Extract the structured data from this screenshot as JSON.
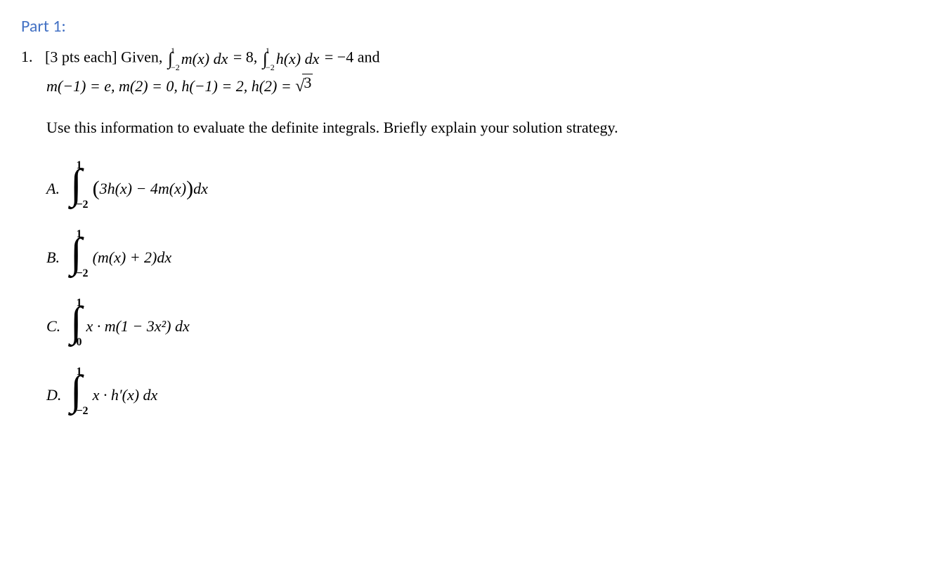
{
  "part": {
    "title": "Part 1:",
    "title_color": "#4472c4"
  },
  "question": {
    "number": "1.",
    "points": "[3 pts each]",
    "given_word": "Given,",
    "integral_m": {
      "lower": "−2",
      "upper": "1",
      "func": "m(x)",
      "dx": "dx",
      "equals": "= 8,"
    },
    "integral_h": {
      "lower": "−2",
      "upper": "1",
      "func": "h(x)",
      "dx": "dx",
      "equals": "= −4"
    },
    "and_word": "and",
    "values_line": "m(−1) = e, m(2) = 0, h(−1) = 2, h(2) = ",
    "sqrt3": "3",
    "instruction": "Use this information to evaluate the definite integrals. Briefly explain your solution strategy."
  },
  "items": {
    "A": {
      "letter": "A.",
      "upper": "1",
      "lower": "−2",
      "body_open": "(",
      "body_mid": "3h(x) − 4m(x)",
      "body_close": ")",
      "dx": " dx"
    },
    "B": {
      "letter": "B.",
      "upper": "1",
      "lower": "−2",
      "body": "(m(x) + 2)dx"
    },
    "C": {
      "letter": "C.",
      "upper": "1",
      "lower": "0",
      "body": "x · m(1 − 3x²) dx"
    },
    "D": {
      "letter": "D.",
      "upper": "1",
      "lower": "−2",
      "body": "x · h′(x) dx"
    }
  },
  "styles": {
    "body_font": "Times New Roman",
    "body_fontsize": 22,
    "part_title_fontfamily": "Calibri",
    "part_title_fontsize": 24,
    "int_bound_fontsize_small": 12,
    "int_bound_fontsize_big": 16,
    "big_int_fontsize": 60,
    "background_color": "#ffffff",
    "text_color": "#000000"
  }
}
